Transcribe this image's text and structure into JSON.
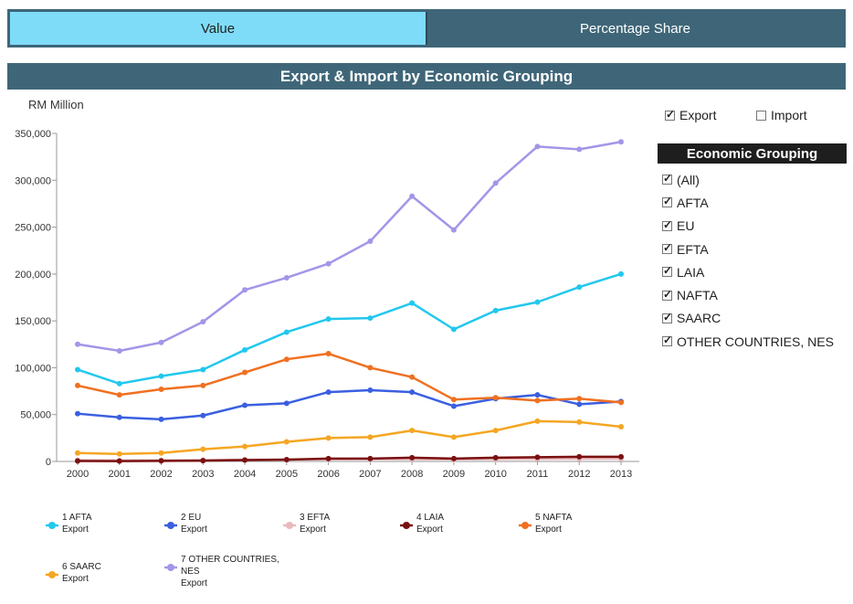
{
  "tabs": [
    {
      "label": "Value",
      "active": true
    },
    {
      "label": "Percentage Share",
      "active": false
    }
  ],
  "title": "Export & Import by Economic Grouping",
  "unit_label": "RM Million",
  "toggles": [
    {
      "label": "Export",
      "checked": true
    },
    {
      "label": "Import",
      "checked": false
    }
  ],
  "filter": {
    "header": "Economic Grouping",
    "items": [
      {
        "label": "(All)",
        "checked": true
      },
      {
        "label": "AFTA",
        "checked": true
      },
      {
        "label": "EU",
        "checked": true
      },
      {
        "label": "EFTA",
        "checked": true
      },
      {
        "label": "LAIA",
        "checked": true
      },
      {
        "label": "NAFTA",
        "checked": true
      },
      {
        "label": "SAARC",
        "checked": true
      },
      {
        "label": "OTHER COUNTRIES, NES",
        "checked": true
      }
    ]
  },
  "chart_data": {
    "type": "line",
    "x": [
      "2000",
      "2001",
      "2002",
      "2003",
      "2004",
      "2005",
      "2006",
      "2007",
      "2008",
      "2009",
      "2010",
      "2011",
      "2012",
      "2013"
    ],
    "ylim": [
      0,
      350000
    ],
    "yticks": [
      0,
      50000,
      100000,
      150000,
      200000,
      250000,
      300000,
      350000
    ],
    "ytick_labels": [
      "0",
      "50,000",
      "100,000",
      "150,000",
      "200,000",
      "250,000",
      "300,000",
      "350,000"
    ],
    "ylabel": "RM Million",
    "grid": false,
    "legend_position": "bottom",
    "series": [
      {
        "name": "1 AFTA",
        "sub": "Export",
        "color": "#22c8ee",
        "values": [
          98000,
          83000,
          91000,
          98000,
          119000,
          138000,
          152000,
          153000,
          169000,
          141000,
          161000,
          170000,
          186000,
          200000
        ]
      },
      {
        "name": "2 EU",
        "sub": "Export",
        "color": "#3a5fe0",
        "values": [
          51000,
          47000,
          45000,
          49000,
          60000,
          62000,
          74000,
          76000,
          74000,
          59000,
          67000,
          71000,
          61000,
          64000
        ]
      },
      {
        "name": "3 EFTA",
        "sub": "Export",
        "color": "#e8b8bd",
        "values": [
          1500,
          1200,
          1300,
          1500,
          1800,
          2000,
          2300,
          2400,
          2600,
          2200,
          2500,
          2800,
          2900,
          3000
        ]
      },
      {
        "name": "4 LAIA",
        "sub": "Export",
        "color": "#7a1010",
        "values": [
          500,
          400,
          600,
          800,
          1500,
          2000,
          3000,
          3000,
          4000,
          3000,
          4000,
          4500,
          5000,
          5000
        ]
      },
      {
        "name": "5 NAFTA",
        "sub": "Export",
        "color": "#f07020",
        "values": [
          81000,
          71000,
          77000,
          81000,
          95000,
          109000,
          115000,
          100000,
          90000,
          66000,
          68000,
          65000,
          67000,
          63000
        ]
      },
      {
        "name": "6 SAARC",
        "sub": "Export",
        "color": "#f5a623",
        "values": [
          9000,
          8000,
          9000,
          13000,
          16000,
          21000,
          25000,
          26000,
          33000,
          26000,
          33000,
          43000,
          42000,
          37000
        ]
      },
      {
        "name": "7 OTHER COUNTRIES, NES",
        "sub": "Export",
        "color": "#a495e8",
        "values": [
          125000,
          118000,
          127000,
          149000,
          183000,
          196000,
          211000,
          235000,
          283000,
          247000,
          297000,
          336000,
          333000,
          341000
        ]
      }
    ]
  }
}
